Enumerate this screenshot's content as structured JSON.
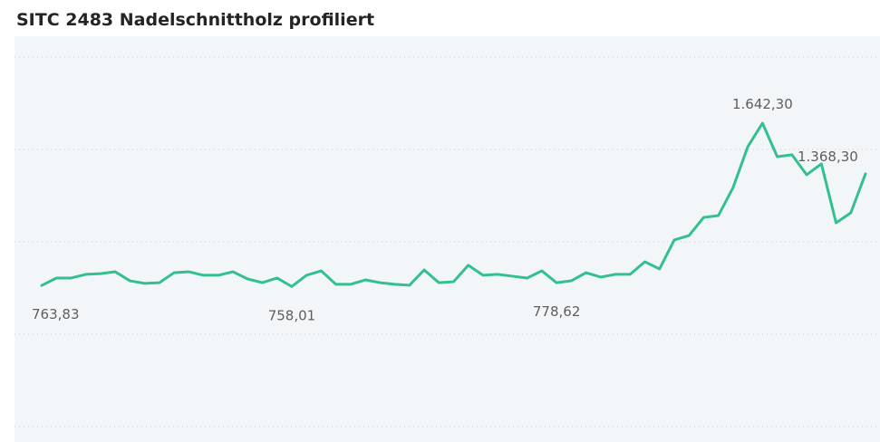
{
  "chart_data": {
    "type": "line",
    "title": "SITC 2483 Nadelschnittholz profiliert",
    "series": [
      {
        "color": "#33c08e",
        "values": [
          763.83,
          804,
          804,
          824,
          828,
          838,
          789,
          775,
          779,
          833,
          838,
          819,
          819,
          838,
          799,
          779,
          804,
          758.01,
          819,
          843,
          770,
          770,
          794,
          779,
          770,
          765,
          848,
          779,
          784,
          873,
          819,
          824,
          814,
          804,
          843,
          778.62,
          789,
          833,
          809,
          824,
          824,
          892,
          853,
          1010,
          1034,
          1132,
          1142,
          1294,
          1515,
          1642.3,
          1461,
          1471,
          1363,
          1422,
          1103,
          1157,
          1368.3
        ],
        "value_labels": [
          "763,83",
          null,
          null,
          null,
          null,
          null,
          null,
          null,
          null,
          null,
          null,
          null,
          null,
          null,
          null,
          null,
          null,
          "758,01",
          null,
          null,
          null,
          null,
          null,
          null,
          null,
          null,
          null,
          null,
          null,
          null,
          null,
          null,
          null,
          null,
          null,
          "778,62",
          null,
          null,
          null,
          null,
          null,
          null,
          null,
          null,
          null,
          null,
          null,
          null,
          null,
          "1.642,30",
          null,
          null,
          null,
          null,
          null,
          null,
          "1.368,30"
        ]
      }
    ],
    "ylim": [
      0,
      2000
    ],
    "yticks": [
      0,
      500,
      1000,
      1500,
      2000
    ],
    "grid": true
  }
}
